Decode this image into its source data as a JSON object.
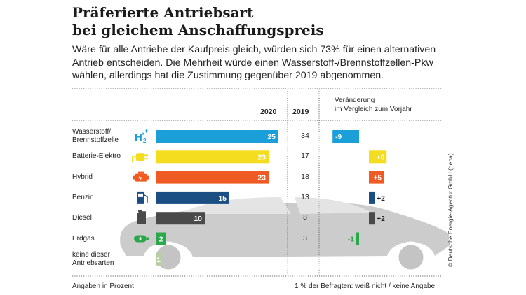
{
  "title_line1": "Präferierte Antriebsart",
  "title_line2": "bei gleichem Anschaffungspreis",
  "subtitle": "Wäre für alle Antriebe der Kaufpreis gleich, würden sich 73% für einen alternativen Antrieb entscheiden. Die Mehrheit würde einen Wasserstoff-/Brennstoffzellen-Pkw wählen, allerdings hat die Zustimmung gegenüber 2019 abgenommen.",
  "credit": "© Deutsche Energie-Agentur GmbH (dena)",
  "footer_left": "Angaben in Prozent",
  "footer_right": "1 % der Befragten: weiß nicht / keine Angabe",
  "chart_data": {
    "type": "bar",
    "title": "Präferierte Antriebsart bei gleichem Anschaffungspreis",
    "unit": "Prozent",
    "col_2020": "2020",
    "col_2019": "2019",
    "change_label_line1": "Veränderung",
    "change_label_line2": "im Vergleich zum Vorjahr",
    "categories": [
      {
        "label": [
          "Wasserstoff/",
          "Brennstoffzelle"
        ],
        "icon": "hydrogen-icon",
        "v2020": 25,
        "v2019": "34",
        "change": -9,
        "change_label": "-9",
        "color": "#1a9fd8"
      },
      {
        "label": [
          "Batterie-Elektro"
        ],
        "icon": "plug-icon",
        "v2020": 23,
        "v2019": "17",
        "change": 6,
        "change_label": "+6",
        "color": "#f4dd1e"
      },
      {
        "label": [
          "Hybrid"
        ],
        "icon": "engine-icon",
        "v2020": 23,
        "v2019": "18",
        "change": 5,
        "change_label": "+5",
        "color": "#f05a23"
      },
      {
        "label": [
          "Benzin"
        ],
        "icon": "fuel-pump-icon",
        "v2020": 15,
        "v2019": "13",
        "change": 2,
        "change_label": "+2",
        "color": "#1b4f84"
      },
      {
        "label": [
          "Diesel"
        ],
        "icon": "canister-icon",
        "v2020": 10,
        "v2019": "8",
        "change": 2,
        "change_label": "+2",
        "color": "#4a4a4a"
      },
      {
        "label": [
          "Erdgas"
        ],
        "icon": "gas-tank-icon",
        "v2020": 2,
        "v2019": "3",
        "change": -1,
        "change_label": "-1",
        "color": "#2aa84a"
      },
      {
        "label": [
          "keine dieser",
          "Antriebsarten"
        ],
        "icon": "",
        "v2020": 1,
        "v2019": "",
        "change": null,
        "change_label": "",
        "color": "#b5cfa0"
      }
    ]
  }
}
